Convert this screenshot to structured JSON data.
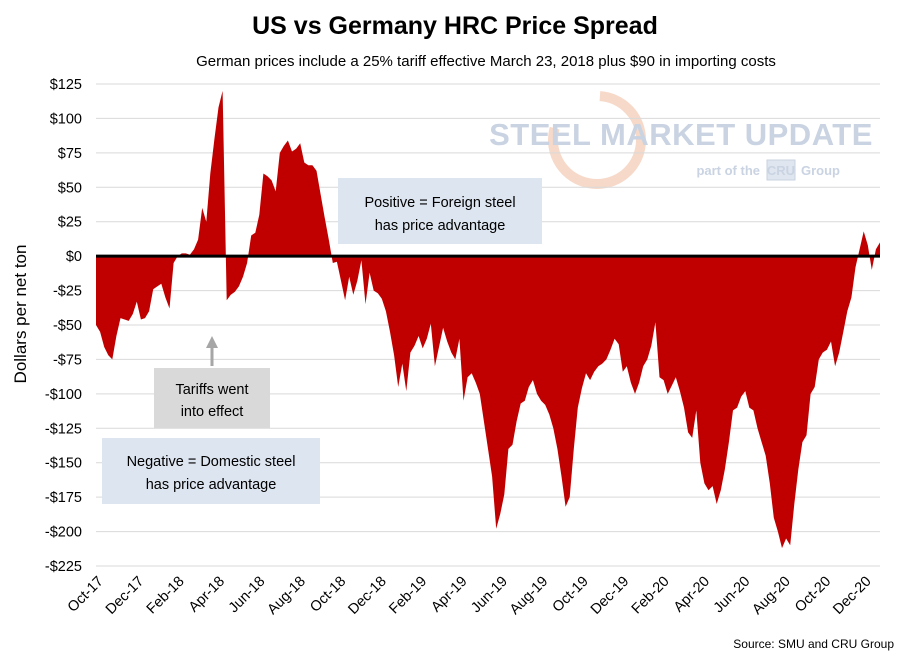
{
  "chart_data": {
    "type": "area",
    "title": "US vs Germany HRC Price Spread",
    "subtitle": "German prices include a 25% tariff effective March 23, 2018 plus $90 in importing costs",
    "ylabel": "Dollars per net ton",
    "xlabel": "",
    "ylim": [
      -225,
      125
    ],
    "y_ticks": [
      125,
      100,
      75,
      50,
      25,
      0,
      -25,
      -50,
      -75,
      -100,
      -125,
      -150,
      -175,
      -200,
      -225
    ],
    "y_tick_labels": [
      "$125",
      "$100",
      "$75",
      "$50",
      "$25",
      "$0",
      "-$25",
      "-$50",
      "-$75",
      "-$100",
      "-$125",
      "-$150",
      "-$175",
      "-$200",
      "-$225"
    ],
    "x_tick_labels": [
      "Oct-17",
      "Dec-17",
      "Feb-18",
      "Apr-18",
      "Jun-18",
      "Aug-18",
      "Oct-18",
      "Dec-18",
      "Feb-19",
      "Apr-19",
      "Jun-19",
      "Aug-19",
      "Oct-19",
      "Dec-19",
      "Feb-20",
      "Apr-20",
      "Jun-20",
      "Aug-20",
      "Oct-20",
      "Dec-20"
    ],
    "x_unit": "weekly observations",
    "grid": "horizontal",
    "series": [
      {
        "color": "#c00000",
        "values": [
          -50,
          -55,
          -66,
          -72,
          -75,
          -58,
          -45,
          -46,
          -47,
          -42,
          -33,
          -46,
          -45,
          -40,
          -24,
          -22,
          -20,
          -30,
          -38,
          -5,
          0,
          2,
          2,
          1,
          5,
          12,
          35,
          25,
          60,
          85,
          108,
          120,
          -32,
          -28,
          -26,
          -22,
          -15,
          -5,
          15,
          17,
          30,
          60,
          58,
          55,
          47,
          75,
          80,
          84,
          76,
          78,
          82,
          68,
          66,
          66,
          62,
          45,
          28,
          12,
          -5,
          -4,
          -18,
          -32,
          -15,
          -28,
          -18,
          -3,
          -35,
          -12,
          -25,
          -27,
          -31,
          -40,
          -55,
          -72,
          -95,
          -78,
          -98,
          -70,
          -65,
          -58,
          -67,
          -60,
          -49,
          -80,
          -66,
          -52,
          -62,
          -70,
          -75,
          -60,
          -105,
          -88,
          -85,
          -92,
          -100,
          -120,
          -140,
          -160,
          -198,
          -187,
          -173,
          -140,
          -137,
          -120,
          -107,
          -105,
          -95,
          -90,
          -100,
          -105,
          -108,
          -115,
          -125,
          -140,
          -160,
          -182,
          -175,
          -140,
          -110,
          -96,
          -85,
          -90,
          -84,
          -80,
          -78,
          -75,
          -68,
          -60,
          -64,
          -84,
          -80,
          -92,
          -100,
          -92,
          -80,
          -75,
          -65,
          -48,
          -88,
          -90,
          -100,
          -94,
          -88,
          -98,
          -110,
          -128,
          -132,
          -112,
          -150,
          -165,
          -170,
          -167,
          -180,
          -170,
          -155,
          -135,
          -112,
          -110,
          -102,
          -98,
          -110,
          -112,
          -125,
          -135,
          -145,
          -165,
          -190,
          -200,
          -212,
          -205,
          -210,
          -180,
          -155,
          -135,
          -130,
          -100,
          -95,
          -75,
          -70,
          -68,
          -62,
          -80,
          -70,
          -55,
          -40,
          -30,
          -8,
          5,
          18,
          8,
          -10,
          5,
          10
        ]
      }
    ],
    "annotations": [
      {
        "text": [
          "Positive = Foreign steel",
          "has price advantage"
        ]
      },
      {
        "text": [
          "Negative = Domestic steel",
          "has price advantage"
        ]
      },
      {
        "text": [
          "Tariffs went",
          "into effect"
        ]
      }
    ],
    "source": "Source: SMU and CRU Group"
  },
  "logo": {
    "name": "STEEL MARKET UPDATE",
    "tagline_before": "part of the",
    "tagline_box": "CRU",
    "tagline_after": "Group"
  },
  "colors": {
    "area": "#c00000",
    "zero_line": "#000000",
    "grid": "#d9d9d9",
    "callout_bg": "#dde5f0",
    "arrow": "#a6a6a6"
  }
}
